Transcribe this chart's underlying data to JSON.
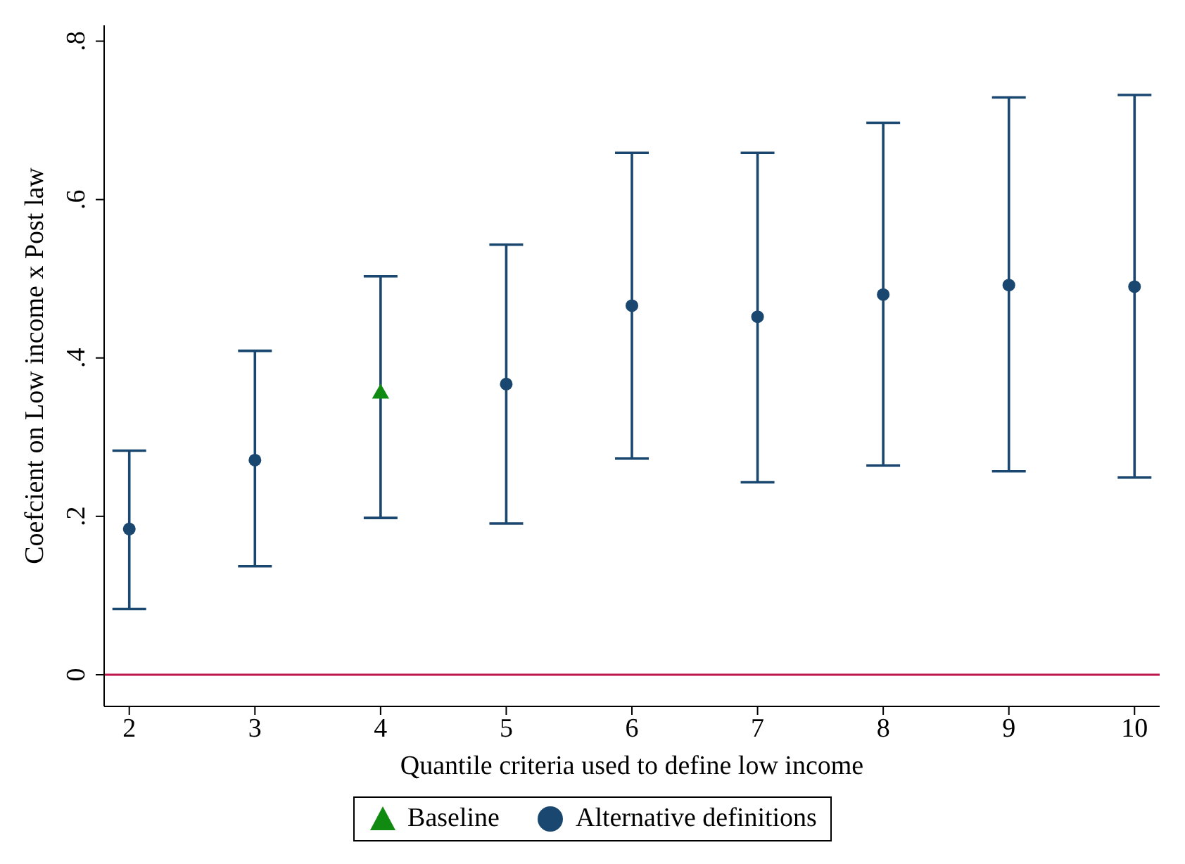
{
  "chart_data": {
    "type": "scatter",
    "xlabel": "Quantile criteria used to define low income",
    "ylabel": "Coefcient on Low income x Post law",
    "xlim": [
      1.8,
      10.2
    ],
    "xticks": [
      2,
      3,
      4,
      5,
      6,
      7,
      8,
      9,
      10
    ],
    "ylim": [
      -0.04,
      0.82
    ],
    "yticks": [
      {
        "value": 0,
        "label": "0"
      },
      {
        "value": 0.2,
        "label": ".2"
      },
      {
        "value": 0.4,
        "label": ".4"
      },
      {
        "value": 0.6,
        "label": ".6"
      },
      {
        "value": 0.8,
        "label": ".8"
      }
    ],
    "grid": false,
    "legend": "bottom",
    "ref_lines": [
      {
        "axis": "y",
        "value": 0,
        "color": "#c0134a"
      }
    ],
    "series": [
      {
        "name": "Baseline",
        "color": "#118a11",
        "marker": "triangle",
        "x": [
          4
        ],
        "values": [
          0.355
        ],
        "errors": [
          [
            0.198,
            0.503
          ]
        ]
      },
      {
        "name": "Alternative definitions",
        "color": "#1a476f",
        "marker": "circle",
        "x": [
          2,
          3,
          5,
          6,
          7,
          8,
          9,
          10
        ],
        "values": [
          0.184,
          0.271,
          0.367,
          0.466,
          0.452,
          0.48,
          0.492,
          0.49
        ],
        "errors": [
          [
            0.083,
            0.283
          ],
          [
            0.137,
            0.409
          ],
          [
            0.191,
            0.543
          ],
          [
            0.273,
            0.659
          ],
          [
            0.243,
            0.659
          ],
          [
            0.264,
            0.697
          ],
          [
            0.257,
            0.729
          ],
          [
            0.249,
            0.732
          ]
        ]
      }
    ]
  }
}
